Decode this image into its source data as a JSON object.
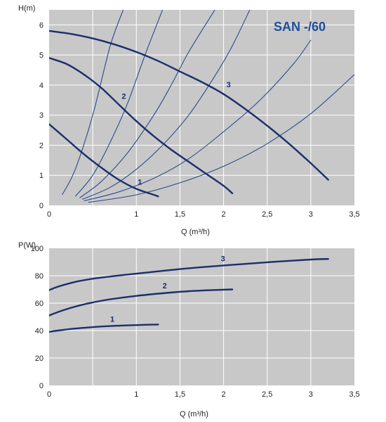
{
  "colors": {
    "plot_bg": "#c8c8c8",
    "grid": "#ffffff",
    "curve": "#1a2f6b",
    "system_curve": "#2a4a8c",
    "title": "#1f4e9a"
  },
  "chart_data": [
    {
      "type": "line",
      "title": "SAN -/60",
      "xlabel": "Q (m³/h)",
      "ylabel": "H(m)",
      "xlim": [
        0,
        3.5
      ],
      "ylim": [
        0,
        6.5
      ],
      "x_ticks": [
        0,
        0.5,
        1,
        1.5,
        2,
        2.5,
        3,
        3.5
      ],
      "x_tick_labels": [
        "0",
        "",
        "1",
        "1,5",
        "2",
        "2,5",
        "3",
        "3,5"
      ],
      "y_ticks": [
        0,
        1,
        2,
        3,
        4,
        5,
        6
      ],
      "y_tick_labels": [
        "0",
        "1",
        "2",
        "3",
        "4",
        "5",
        "6"
      ],
      "grid": true,
      "series": [
        {
          "name": "1",
          "label": "1",
          "x": [
            0,
            0.2,
            0.4,
            0.6,
            0.8,
            1.0,
            1.2,
            1.25
          ],
          "y": [
            2.7,
            2.2,
            1.7,
            1.25,
            0.85,
            0.55,
            0.35,
            0.3
          ]
        },
        {
          "name": "2",
          "label": "2",
          "x": [
            0,
            0.2,
            0.4,
            0.6,
            0.8,
            1.0,
            1.2,
            1.4,
            1.6,
            1.8,
            2.0,
            2.1
          ],
          "y": [
            4.9,
            4.7,
            4.35,
            3.9,
            3.35,
            2.8,
            2.3,
            1.85,
            1.45,
            1.05,
            0.65,
            0.4
          ]
        },
        {
          "name": "3",
          "label": "3",
          "x": [
            0,
            0.25,
            0.5,
            0.75,
            1.0,
            1.25,
            1.5,
            1.75,
            2.0,
            2.25,
            2.5,
            2.75,
            3.0,
            3.2
          ],
          "y": [
            5.8,
            5.7,
            5.55,
            5.35,
            5.1,
            4.8,
            4.45,
            4.1,
            3.7,
            3.2,
            2.65,
            2.05,
            1.4,
            0.85
          ]
        }
      ],
      "system_curves": [
        {
          "x": [
            0.15,
            0.3,
            0.5,
            0.7,
            0.85
          ],
          "y": [
            0.35,
            1.2,
            3.0,
            5.3,
            6.5
          ]
        },
        {
          "x": [
            0.3,
            0.5,
            0.7,
            0.9,
            1.1,
            1.3
          ],
          "y": [
            0.3,
            1.0,
            2.1,
            3.4,
            5.0,
            6.5
          ]
        },
        {
          "x": [
            0.35,
            0.6,
            0.9,
            1.2,
            1.4,
            1.6,
            1.9
          ],
          "y": [
            0.25,
            0.8,
            1.75,
            3.0,
            4.0,
            5.1,
            6.5
          ]
        },
        {
          "x": [
            0.38,
            0.7,
            1.0,
            1.3,
            1.6,
            1.9,
            2.1,
            2.3
          ],
          "y": [
            0.2,
            0.6,
            1.2,
            2.0,
            3.0,
            4.3,
            5.3,
            6.5
          ]
        },
        {
          "x": [
            0.4,
            0.8,
            1.2,
            1.6,
            2.0,
            2.4,
            2.8,
            3.0
          ],
          "y": [
            0.15,
            0.45,
            0.9,
            1.55,
            2.45,
            3.45,
            4.7,
            5.5
          ]
        },
        {
          "x": [
            0.45,
            1.0,
            1.5,
            2.0,
            2.5,
            3.0,
            3.5
          ],
          "y": [
            0.1,
            0.35,
            0.75,
            1.3,
            2.05,
            3.05,
            4.35
          ]
        }
      ]
    },
    {
      "type": "line",
      "title": "",
      "xlabel": "Q (m³/h)",
      "ylabel": "P(W)",
      "xlim": [
        0,
        3.5
      ],
      "ylim": [
        0,
        100
      ],
      "x_ticks": [
        0,
        0.5,
        1,
        1.5,
        2,
        2.5,
        3,
        3.5
      ],
      "x_tick_labels": [
        "0",
        "",
        "1",
        "1,5",
        "2",
        "2,5",
        "3",
        "3,5"
      ],
      "y_ticks": [
        0,
        20,
        40,
        60,
        80,
        100
      ],
      "y_tick_labels": [
        "0",
        "20",
        "40",
        "60",
        "80",
        "100"
      ],
      "grid": true,
      "series": [
        {
          "name": "1",
          "label": "1",
          "x": [
            0,
            0.1,
            0.3,
            0.5,
            0.7,
            0.9,
            1.1,
            1.25
          ],
          "y": [
            39,
            40,
            41.5,
            42.5,
            43.3,
            43.8,
            44.2,
            44.4
          ]
        },
        {
          "name": "2",
          "label": "2",
          "x": [
            0,
            0.1,
            0.3,
            0.5,
            0.7,
            1.0,
            1.3,
            1.6,
            1.9,
            2.1
          ],
          "y": [
            51,
            53.5,
            57.5,
            60.5,
            62.8,
            65.3,
            67.2,
            68.7,
            69.6,
            70.0
          ]
        },
        {
          "name": "3",
          "label": "3",
          "x": [
            0,
            0.1,
            0.3,
            0.5,
            0.75,
            1.0,
            1.5,
            2.0,
            2.5,
            3.0,
            3.2
          ],
          "y": [
            69.5,
            72,
            75.5,
            77.8,
            79.8,
            81.5,
            84.8,
            87.5,
            89.8,
            91.8,
            92.2
          ]
        }
      ]
    }
  ]
}
